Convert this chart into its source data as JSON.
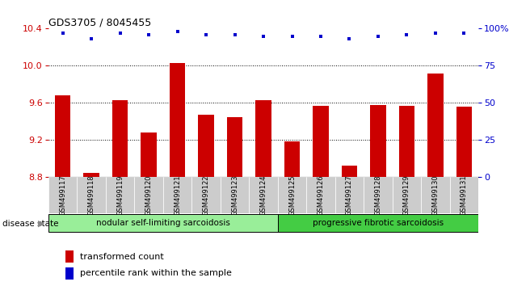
{
  "title": "GDS3705 / 8045455",
  "samples": [
    "GSM499117",
    "GSM499118",
    "GSM499119",
    "GSM499120",
    "GSM499121",
    "GSM499122",
    "GSM499123",
    "GSM499124",
    "GSM499125",
    "GSM499126",
    "GSM499127",
    "GSM499128",
    "GSM499129",
    "GSM499130",
    "GSM499131"
  ],
  "bar_values": [
    9.68,
    8.85,
    9.63,
    9.28,
    10.03,
    9.47,
    9.45,
    9.63,
    9.19,
    9.57,
    8.93,
    9.58,
    9.57,
    9.92,
    9.56
  ],
  "percentile_values": [
    97,
    93,
    97,
    96,
    98,
    96,
    96,
    95,
    95,
    95,
    93,
    95,
    96,
    97,
    97
  ],
  "bar_color": "#cc0000",
  "percentile_color": "#0000cc",
  "ylim_left": [
    8.8,
    10.4
  ],
  "ylim_right": [
    0,
    100
  ],
  "yticks_left": [
    8.8,
    9.2,
    9.6,
    10.0,
    10.4
  ],
  "yticks_right": [
    0,
    25,
    50,
    75,
    100
  ],
  "grid_values": [
    9.2,
    9.6,
    10.0
  ],
  "group1_label": "nodular self-limiting sarcoidosis",
  "group2_label": "progressive fibrotic sarcoidosis",
  "group1_indices": [
    0,
    1,
    2,
    3,
    4,
    5,
    6,
    7
  ],
  "group2_indices": [
    8,
    9,
    10,
    11,
    12,
    13,
    14
  ],
  "group1_color": "#99ee99",
  "group2_color": "#44cc44",
  "disease_state_label": "disease state",
  "legend_bar_label": "transformed count",
  "legend_pct_label": "percentile rank within the sample",
  "bar_width": 0.55
}
